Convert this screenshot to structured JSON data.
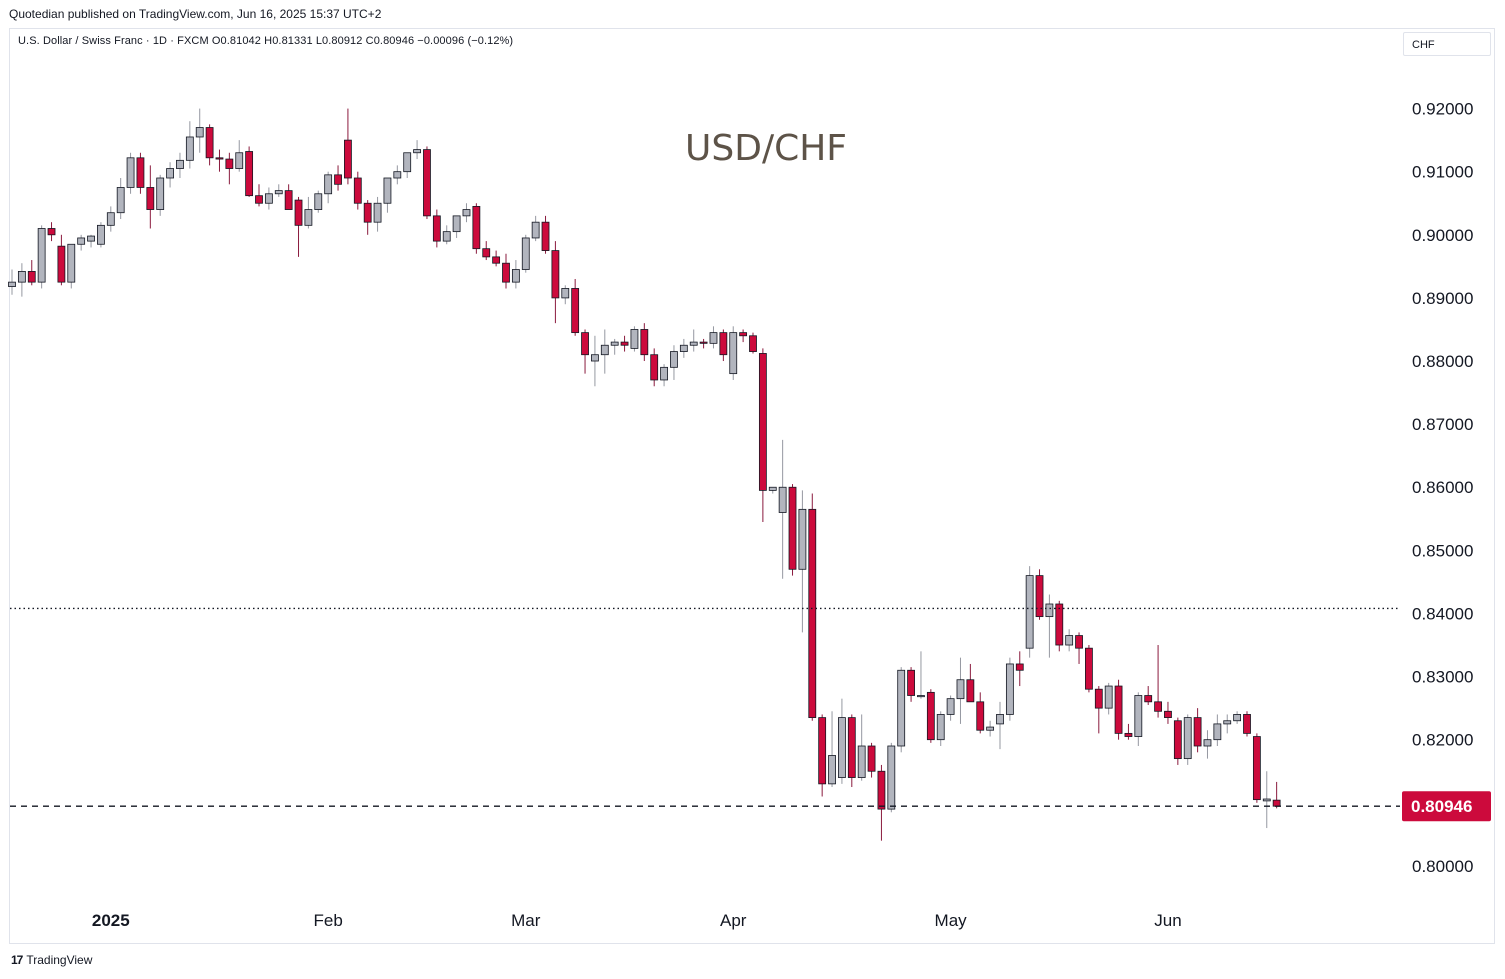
{
  "published": "Quotedian published on TradingView.com, Jun 16, 2025 15:37 UTC+2",
  "symbol_line": "U.S. Dollar / Swiss Franc · 1D · FXCM  O0.81042  H0.81331  L0.80912  C0.80946  −0.00096 (−0.12%)",
  "currency_button": "CHF",
  "footer_brand": "TradingView",
  "footer_logo": "17",
  "colors": {
    "up": "#b2b5be",
    "down": "#cc0a3c",
    "wick_down": "#8a1a3d",
    "text": "#131722",
    "title": "#5d5348"
  },
  "chart_data": {
    "type": "candlestick",
    "title": "USD/CHF",
    "xlabel": "",
    "ylabel": "",
    "ylim": [
      0.7965,
      0.9315
    ],
    "y_ticks": [
      "0.92000",
      "0.91000",
      "0.90000",
      "0.89000",
      "0.88000",
      "0.87000",
      "0.86000",
      "0.85000",
      "0.84000",
      "0.83000",
      "0.82000",
      "0.80000"
    ],
    "x_ticks": [
      {
        "label": "2025",
        "index": 10
      },
      {
        "label": "Feb",
        "index": 32
      },
      {
        "label": "Mar",
        "index": 52
      },
      {
        "label": "Apr",
        "index": 73
      },
      {
        "label": "May",
        "index": 95
      },
      {
        "label": "Jun",
        "index": 117
      }
    ],
    "last_price": 0.80946,
    "last_price_label": "0.80946",
    "resistance_level": 0.8408,
    "candles": [
      [
        0.8918,
        0.8945,
        0.8905,
        0.8925
      ],
      [
        0.8925,
        0.8955,
        0.8902,
        0.8942
      ],
      [
        0.8942,
        0.896,
        0.892,
        0.8925
      ],
      [
        0.8925,
        0.9015,
        0.8915,
        0.901
      ],
      [
        0.901,
        0.902,
        0.899,
        0.9
      ],
      [
        0.8982,
        0.9,
        0.892,
        0.8925
      ],
      [
        0.8925,
        0.8985,
        0.8915,
        0.8985
      ],
      [
        0.8985,
        0.9,
        0.8975,
        0.8995
      ],
      [
        0.899,
        0.9,
        0.898,
        0.8998
      ],
      [
        0.8985,
        0.902,
        0.898,
        0.9015
      ],
      [
        0.9015,
        0.9045,
        0.9005,
        0.9035
      ],
      [
        0.9035,
        0.909,
        0.9025,
        0.9075
      ],
      [
        0.9075,
        0.913,
        0.9065,
        0.9122
      ],
      [
        0.9122,
        0.913,
        0.9065,
        0.9075
      ],
      [
        0.9075,
        0.911,
        0.901,
        0.904
      ],
      [
        0.904,
        0.9095,
        0.903,
        0.909
      ],
      [
        0.909,
        0.9115,
        0.9075,
        0.9105
      ],
      [
        0.9105,
        0.913,
        0.909,
        0.9118
      ],
      [
        0.9118,
        0.918,
        0.9105,
        0.9155
      ],
      [
        0.9155,
        0.92,
        0.913,
        0.917
      ],
      [
        0.917,
        0.9175,
        0.911,
        0.9122
      ],
      [
        0.9122,
        0.9135,
        0.91,
        0.912
      ],
      [
        0.912,
        0.913,
        0.908,
        0.9105
      ],
      [
        0.9105,
        0.915,
        0.91,
        0.913
      ],
      [
        0.9132,
        0.914,
        0.906,
        0.9062
      ],
      [
        0.9062,
        0.908,
        0.9045,
        0.905
      ],
      [
        0.905,
        0.9075,
        0.904,
        0.9065
      ],
      [
        0.9065,
        0.908,
        0.906,
        0.907
      ],
      [
        0.907,
        0.908,
        0.904,
        0.904
      ],
      [
        0.9055,
        0.906,
        0.8965,
        0.9015
      ],
      [
        0.9015,
        0.906,
        0.901,
        0.904
      ],
      [
        0.904,
        0.907,
        0.9035,
        0.9065
      ],
      [
        0.9065,
        0.91,
        0.905,
        0.9095
      ],
      [
        0.9095,
        0.911,
        0.907,
        0.908
      ],
      [
        0.915,
        0.92,
        0.908,
        0.909
      ],
      [
        0.909,
        0.91,
        0.904,
        0.905
      ],
      [
        0.905,
        0.9055,
        0.9,
        0.902
      ],
      [
        0.902,
        0.906,
        0.9005,
        0.905
      ],
      [
        0.905,
        0.909,
        0.9035,
        0.909
      ],
      [
        0.909,
        0.911,
        0.908,
        0.91
      ],
      [
        0.91,
        0.913,
        0.909,
        0.913
      ],
      [
        0.913,
        0.915,
        0.912,
        0.9135
      ],
      [
        0.9135,
        0.914,
        0.9025,
        0.903
      ],
      [
        0.903,
        0.904,
        0.898,
        0.899
      ],
      [
        0.899,
        0.9015,
        0.8985,
        0.9005
      ],
      [
        0.9005,
        0.903,
        0.8995,
        0.903
      ],
      [
        0.903,
        0.905,
        0.902,
        0.904
      ],
      [
        0.9045,
        0.905,
        0.897,
        0.8978
      ],
      [
        0.8978,
        0.899,
        0.896,
        0.8965
      ],
      [
        0.8965,
        0.8975,
        0.895,
        0.8955
      ],
      [
        0.8955,
        0.897,
        0.8915,
        0.8925
      ],
      [
        0.8925,
        0.896,
        0.8915,
        0.8945
      ],
      [
        0.8945,
        0.9,
        0.894,
        0.8995
      ],
      [
        0.8995,
        0.903,
        0.899,
        0.902
      ],
      [
        0.902,
        0.903,
        0.897,
        0.8975
      ],
      [
        0.8975,
        0.899,
        0.886,
        0.89
      ],
      [
        0.89,
        0.892,
        0.889,
        0.8915
      ],
      [
        0.8915,
        0.893,
        0.884,
        0.8845
      ],
      [
        0.8845,
        0.885,
        0.878,
        0.881
      ],
      [
        0.88,
        0.884,
        0.876,
        0.881
      ],
      [
        0.881,
        0.885,
        0.878,
        0.8825
      ],
      [
        0.8825,
        0.8835,
        0.881,
        0.883
      ],
      [
        0.883,
        0.884,
        0.8815,
        0.8825
      ],
      [
        0.882,
        0.8855,
        0.8815,
        0.885
      ],
      [
        0.885,
        0.886,
        0.88,
        0.881
      ],
      [
        0.881,
        0.882,
        0.876,
        0.877
      ],
      [
        0.877,
        0.8795,
        0.876,
        0.879
      ],
      [
        0.879,
        0.8825,
        0.877,
        0.8815
      ],
      [
        0.8815,
        0.8835,
        0.8805,
        0.8825
      ],
      [
        0.8825,
        0.885,
        0.8815,
        0.883
      ],
      [
        0.883,
        0.8835,
        0.882,
        0.8828
      ],
      [
        0.8828,
        0.8855,
        0.882,
        0.8845
      ],
      [
        0.8845,
        0.885,
        0.88,
        0.881
      ],
      [
        0.878,
        0.8855,
        0.877,
        0.8845
      ],
      [
        0.8845,
        0.885,
        0.883,
        0.884
      ],
      [
        0.884,
        0.8845,
        0.8812,
        0.8815
      ],
      [
        0.8812,
        0.882,
        0.8545,
        0.8595
      ],
      [
        0.8595,
        0.86,
        0.859,
        0.86
      ],
      [
        0.856,
        0.8675,
        0.8455,
        0.86
      ],
      [
        0.86,
        0.8605,
        0.846,
        0.847
      ],
      [
        0.847,
        0.8595,
        0.837,
        0.8565
      ],
      [
        0.8565,
        0.859,
        0.823,
        0.8235
      ],
      [
        0.8235,
        0.824,
        0.811,
        0.813
      ],
      [
        0.813,
        0.8245,
        0.8125,
        0.8175
      ],
      [
        0.814,
        0.8265,
        0.813,
        0.8235
      ],
      [
        0.8235,
        0.824,
        0.8125,
        0.814
      ],
      [
        0.814,
        0.824,
        0.8135,
        0.819
      ],
      [
        0.819,
        0.8195,
        0.814,
        0.815
      ],
      [
        0.815,
        0.816,
        0.804,
        0.809
      ],
      [
        0.809,
        0.8195,
        0.8085,
        0.819
      ],
      [
        0.819,
        0.8315,
        0.818,
        0.831
      ],
      [
        0.831,
        0.8315,
        0.826,
        0.827
      ],
      [
        0.827,
        0.834,
        0.8265,
        0.827
      ],
      [
        0.8275,
        0.828,
        0.8195,
        0.82
      ],
      [
        0.82,
        0.8245,
        0.819,
        0.824
      ],
      [
        0.824,
        0.827,
        0.823,
        0.8265
      ],
      [
        0.8265,
        0.833,
        0.8225,
        0.8295
      ],
      [
        0.8295,
        0.832,
        0.826,
        0.826
      ],
      [
        0.826,
        0.8275,
        0.821,
        0.8215
      ],
      [
        0.8215,
        0.823,
        0.8205,
        0.822
      ],
      [
        0.8225,
        0.826,
        0.8185,
        0.824
      ],
      [
        0.824,
        0.833,
        0.823,
        0.832
      ],
      [
        0.832,
        0.834,
        0.8285,
        0.831
      ],
      [
        0.8345,
        0.8475,
        0.833,
        0.846
      ],
      [
        0.846,
        0.847,
        0.839,
        0.8395
      ],
      [
        0.8395,
        0.843,
        0.833,
        0.8415
      ],
      [
        0.8415,
        0.842,
        0.834,
        0.835
      ],
      [
        0.835,
        0.8375,
        0.834,
        0.8365
      ],
      [
        0.8365,
        0.837,
        0.832,
        0.8345
      ],
      [
        0.8345,
        0.835,
        0.8275,
        0.828
      ],
      [
        0.828,
        0.8285,
        0.821,
        0.825
      ],
      [
        0.825,
        0.829,
        0.824,
        0.8285
      ],
      [
        0.8285,
        0.8295,
        0.82,
        0.821
      ],
      [
        0.821,
        0.8225,
        0.82,
        0.8205
      ],
      [
        0.8205,
        0.8275,
        0.819,
        0.827
      ],
      [
        0.827,
        0.8285,
        0.8255,
        0.826
      ],
      [
        0.826,
        0.835,
        0.8235,
        0.8245
      ],
      [
        0.8245,
        0.826,
        0.8225,
        0.8235
      ],
      [
        0.823,
        0.8235,
        0.816,
        0.817
      ],
      [
        0.817,
        0.824,
        0.816,
        0.8235
      ],
      [
        0.8235,
        0.825,
        0.818,
        0.819
      ],
      [
        0.819,
        0.8215,
        0.817,
        0.82
      ],
      [
        0.82,
        0.824,
        0.819,
        0.8225
      ],
      [
        0.8225,
        0.824,
        0.821,
        0.823
      ],
      [
        0.823,
        0.8245,
        0.8225,
        0.824
      ],
      [
        0.824,
        0.8245,
        0.8205,
        0.821
      ],
      [
        0.8205,
        0.821,
        0.81,
        0.8105
      ],
      [
        0.8103,
        0.815,
        0.806,
        0.8106
      ],
      [
        0.81042,
        0.81331,
        0.80912,
        0.80946
      ]
    ]
  }
}
